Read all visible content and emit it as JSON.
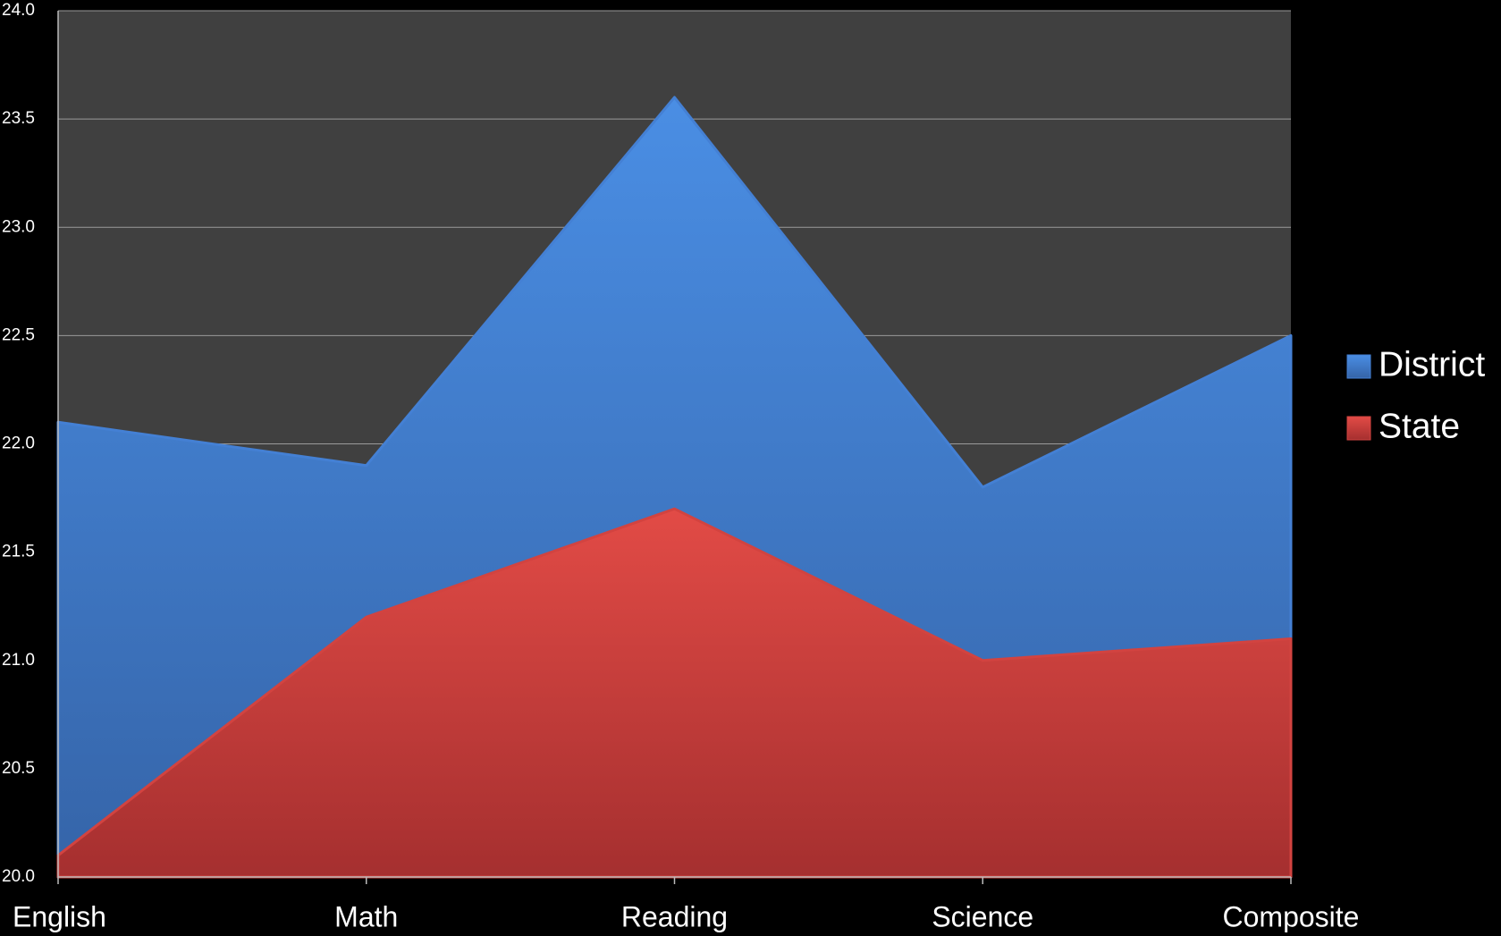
{
  "chart_data": {
    "type": "area",
    "categories": [
      "English",
      "Math",
      "Reading",
      "Science",
      "Composite"
    ],
    "series": [
      {
        "name": "District",
        "color": "#4480d4",
        "values": [
          22.1,
          21.9,
          23.6,
          21.8,
          22.5
        ]
      },
      {
        "name": "State",
        "color": "#d24340",
        "values": [
          20.1,
          21.2,
          21.7,
          21.0,
          21.1
        ]
      }
    ],
    "ylim": [
      20.0,
      24.0
    ],
    "yticks": [
      {
        "value": 20.0,
        "label": "20.0"
      },
      {
        "value": 20.5,
        "label": "20.5"
      },
      {
        "value": 21.0,
        "label": "21.0"
      },
      {
        "value": 21.5,
        "label": "21.5"
      },
      {
        "value": 22.0,
        "label": "22.0"
      },
      {
        "value": 22.5,
        "label": "22.5"
      },
      {
        "value": 23.0,
        "label": "23.0"
      },
      {
        "value": 23.5,
        "label": "23.5"
      },
      {
        "value": 24.0,
        "label": "24.0"
      }
    ],
    "grid": true,
    "legend": "right"
  }
}
